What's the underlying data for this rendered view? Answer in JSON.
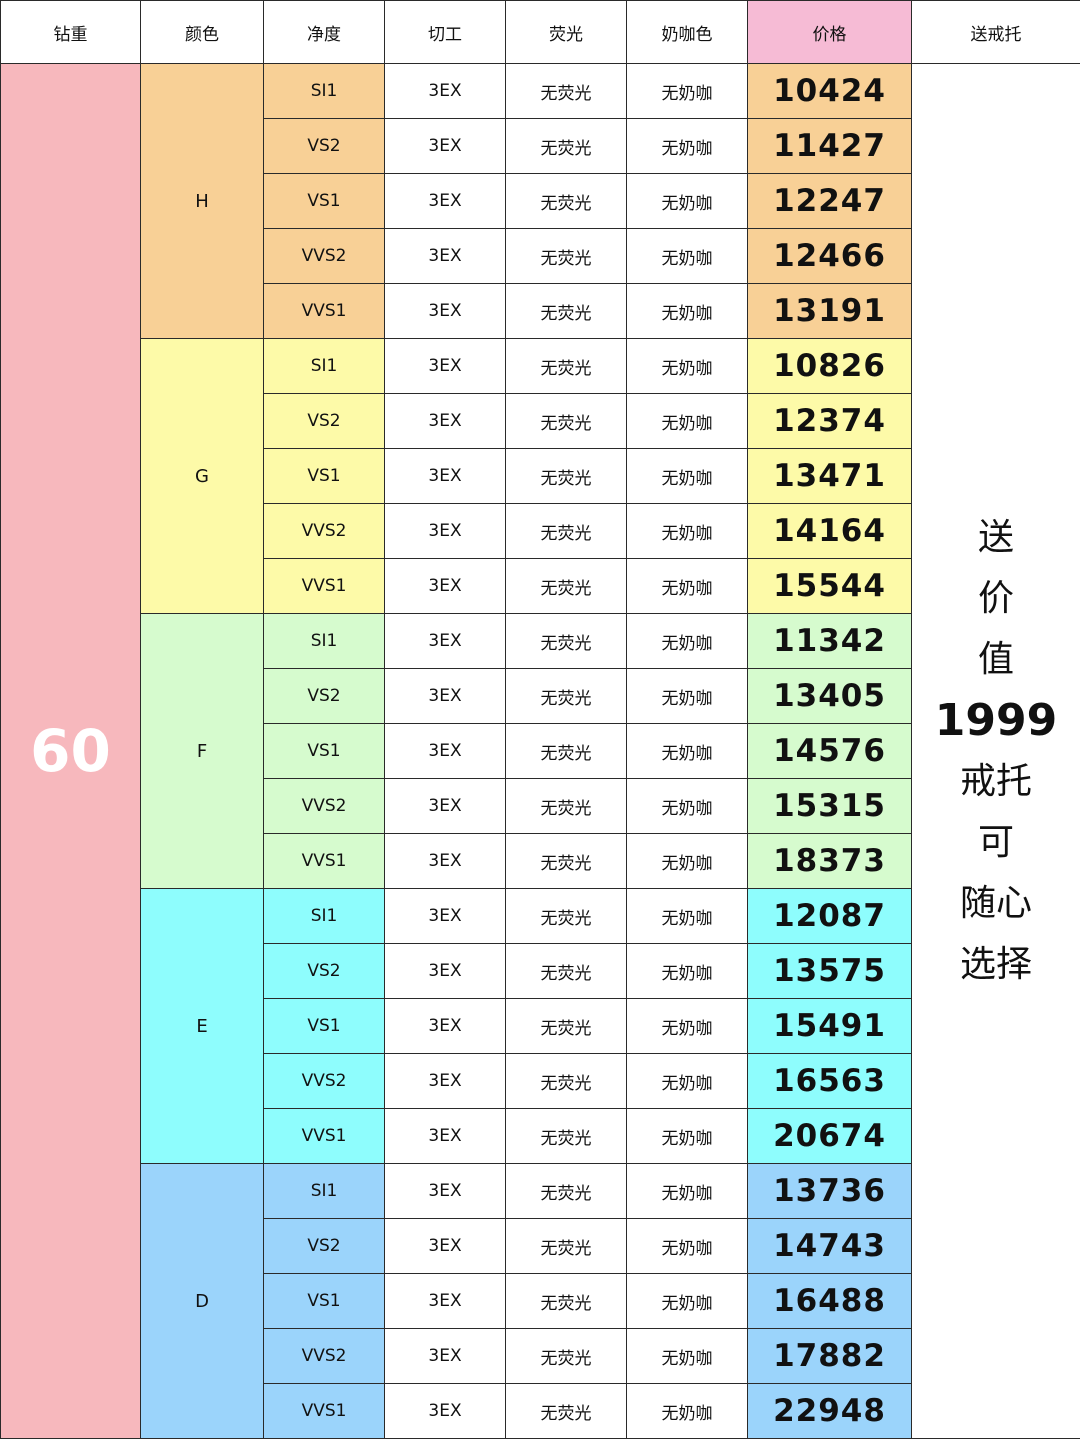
{
  "headers": [
    "钻重",
    "颜色",
    "净度",
    "切工",
    "荧光",
    "奶咖色",
    "价格",
    "送戒托"
  ],
  "weight": "60",
  "gift_lines": [
    "送",
    "价",
    "值",
    "1999",
    "戒托",
    "可",
    "随心",
    "选择"
  ],
  "colors": {
    "H": "#f8d096",
    "G": "#fdfaa8",
    "F": "#d6fbce",
    "E": "#8efdfd",
    "D": "#9bd4fb",
    "header_price": "#f6bbd5",
    "weight_cell": "#f7b8bd"
  },
  "groups": [
    {
      "color": "H",
      "rows": [
        {
          "clarity": "SI1",
          "cut": "3EX",
          "fluorescence": "无荧光",
          "tint": "无奶咖",
          "price": "10424"
        },
        {
          "clarity": "VS2",
          "cut": "3EX",
          "fluorescence": "无荧光",
          "tint": "无奶咖",
          "price": "11427"
        },
        {
          "clarity": "VS1",
          "cut": "3EX",
          "fluorescence": "无荧光",
          "tint": "无奶咖",
          "price": "12247"
        },
        {
          "clarity": "VVS2",
          "cut": "3EX",
          "fluorescence": "无荧光",
          "tint": "无奶咖",
          "price": "12466"
        },
        {
          "clarity": "VVS1",
          "cut": "3EX",
          "fluorescence": "无荧光",
          "tint": "无奶咖",
          "price": "13191"
        }
      ]
    },
    {
      "color": "G",
      "rows": [
        {
          "clarity": "SI1",
          "cut": "3EX",
          "fluorescence": "无荧光",
          "tint": "无奶咖",
          "price": "10826"
        },
        {
          "clarity": "VS2",
          "cut": "3EX",
          "fluorescence": "无荧光",
          "tint": "无奶咖",
          "price": "12374"
        },
        {
          "clarity": "VS1",
          "cut": "3EX",
          "fluorescence": "无荧光",
          "tint": "无奶咖",
          "price": "13471"
        },
        {
          "clarity": "VVS2",
          "cut": "3EX",
          "fluorescence": "无荧光",
          "tint": "无奶咖",
          "price": "14164"
        },
        {
          "clarity": "VVS1",
          "cut": "3EX",
          "fluorescence": "无荧光",
          "tint": "无奶咖",
          "price": "15544"
        }
      ]
    },
    {
      "color": "F",
      "rows": [
        {
          "clarity": "SI1",
          "cut": "3EX",
          "fluorescence": "无荧光",
          "tint": "无奶咖",
          "price": "11342"
        },
        {
          "clarity": "VS2",
          "cut": "3EX",
          "fluorescence": "无荧光",
          "tint": "无奶咖",
          "price": "13405"
        },
        {
          "clarity": "VS1",
          "cut": "3EX",
          "fluorescence": "无荧光",
          "tint": "无奶咖",
          "price": "14576"
        },
        {
          "clarity": "VVS2",
          "cut": "3EX",
          "fluorescence": "无荧光",
          "tint": "无奶咖",
          "price": "15315"
        },
        {
          "clarity": "VVS1",
          "cut": "3EX",
          "fluorescence": "无荧光",
          "tint": "无奶咖",
          "price": "18373"
        }
      ]
    },
    {
      "color": "E",
      "rows": [
        {
          "clarity": "SI1",
          "cut": "3EX",
          "fluorescence": "无荧光",
          "tint": "无奶咖",
          "price": "12087"
        },
        {
          "clarity": "VS2",
          "cut": "3EX",
          "fluorescence": "无荧光",
          "tint": "无奶咖",
          "price": "13575"
        },
        {
          "clarity": "VS1",
          "cut": "3EX",
          "fluorescence": "无荧光",
          "tint": "无奶咖",
          "price": "15491"
        },
        {
          "clarity": "VVS2",
          "cut": "3EX",
          "fluorescence": "无荧光",
          "tint": "无奶咖",
          "price": "16563"
        },
        {
          "clarity": "VVS1",
          "cut": "3EX",
          "fluorescence": "无荧光",
          "tint": "无奶咖",
          "price": "20674"
        }
      ]
    },
    {
      "color": "D",
      "rows": [
        {
          "clarity": "SI1",
          "cut": "3EX",
          "fluorescence": "无荧光",
          "tint": "无奶咖",
          "price": "13736"
        },
        {
          "clarity": "VS2",
          "cut": "3EX",
          "fluorescence": "无荧光",
          "tint": "无奶咖",
          "price": "14743"
        },
        {
          "clarity": "VS1",
          "cut": "3EX",
          "fluorescence": "无荧光",
          "tint": "无奶咖",
          "price": "16488"
        },
        {
          "clarity": "VVS2",
          "cut": "3EX",
          "fluorescence": "无荧光",
          "tint": "无奶咖",
          "price": "17882"
        },
        {
          "clarity": "VVS1",
          "cut": "3EX",
          "fluorescence": "无荧光",
          "tint": "无奶咖",
          "price": "22948"
        }
      ]
    }
  ]
}
